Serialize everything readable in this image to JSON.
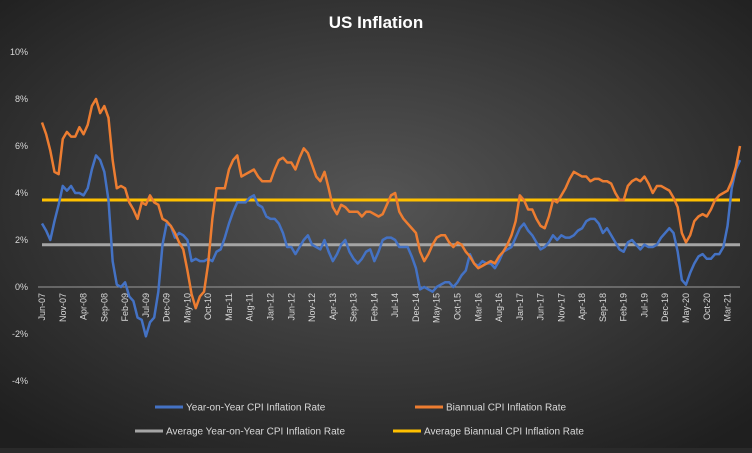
{
  "chart_data": {
    "type": "line",
    "title": "US Inflation",
    "categories": [
      "Jun-07",
      null,
      null,
      null,
      null,
      "Nov-07",
      null,
      null,
      null,
      null,
      "Apr-08",
      null,
      null,
      null,
      null,
      "Sep-08",
      null,
      null,
      null,
      null,
      "Feb-09",
      null,
      null,
      null,
      null,
      "Jul-09",
      null,
      null,
      null,
      null,
      "Dec-09",
      null,
      null,
      null,
      null,
      "May-10",
      null,
      null,
      null,
      null,
      "Oct-10",
      null,
      null,
      null,
      null,
      "Mar-11",
      null,
      null,
      null,
      null,
      "Aug-11",
      null,
      null,
      null,
      null,
      "Jan-12",
      null,
      null,
      null,
      null,
      "Jun-12",
      null,
      null,
      null,
      null,
      "Nov-12",
      null,
      null,
      null,
      null,
      "Apr-13",
      null,
      null,
      null,
      null,
      "Sep-13",
      null,
      null,
      null,
      null,
      "Feb-14",
      null,
      null,
      null,
      null,
      "Jul-14",
      null,
      null,
      null,
      null,
      "Dec-14",
      null,
      null,
      null,
      null,
      "May-15",
      null,
      null,
      null,
      null,
      "Oct-15",
      null,
      null,
      null,
      null,
      "Mar-16",
      null,
      null,
      null,
      null,
      "Aug-16",
      null,
      null,
      null,
      null,
      "Jan-17",
      null,
      null,
      null,
      null,
      "Jun-17",
      null,
      null,
      null,
      null,
      "Nov-17",
      null,
      null,
      null,
      null,
      "Apr-18",
      null,
      null,
      null,
      null,
      "Sep-18",
      null,
      null,
      null,
      null,
      "Feb-19",
      null,
      null,
      null,
      null,
      "Jul-19",
      null,
      null,
      null,
      null,
      "Dec-19",
      null,
      null,
      null,
      null,
      "May-20",
      null,
      null,
      null,
      null,
      "Oct-20",
      null,
      null,
      null,
      null,
      "Mar-21",
      null,
      null,
      null
    ],
    "series": [
      {
        "name": "Year-on-Year CPI Inflation Rate",
        "color": "#4472c4",
        "values": [
          2.7,
          2.4,
          2.0,
          2.8,
          3.5,
          4.3,
          4.1,
          4.3,
          4.0,
          4.0,
          3.9,
          4.2,
          5.0,
          5.6,
          5.4,
          4.9,
          3.7,
          1.1,
          0.1,
          0.0,
          0.2,
          -0.4,
          -0.6,
          -1.3,
          -1.4,
          -2.1,
          -1.5,
          -1.3,
          -0.2,
          1.8,
          2.7,
          2.6,
          2.1,
          2.3,
          2.2,
          2.0,
          1.1,
          1.2,
          1.1,
          1.1,
          1.2,
          1.1,
          1.5,
          1.6,
          2.1,
          2.7,
          3.2,
          3.6,
          3.6,
          3.6,
          3.8,
          3.9,
          3.5,
          3.4,
          3.0,
          2.9,
          2.9,
          2.7,
          2.3,
          1.7,
          1.7,
          1.4,
          1.7,
          2.0,
          2.2,
          1.8,
          1.7,
          1.6,
          2.0,
          1.5,
          1.1,
          1.4,
          1.8,
          2.0,
          1.5,
          1.2,
          1.0,
          1.2,
          1.5,
          1.6,
          1.1,
          1.5,
          2.0,
          2.1,
          2.1,
          2.0,
          1.7,
          1.7,
          1.7,
          1.3,
          0.8,
          -0.1,
          0.0,
          -0.1,
          -0.2,
          0.0,
          0.1,
          0.2,
          0.2,
          0.0,
          0.2,
          0.5,
          0.7,
          1.4,
          1.0,
          0.9,
          1.1,
          1.0,
          1.0,
          0.8,
          1.1,
          1.5,
          1.6,
          1.7,
          2.1,
          2.5,
          2.7,
          2.4,
          2.2,
          1.9,
          1.6,
          1.7,
          1.9,
          2.2,
          2.0,
          2.2,
          2.1,
          2.1,
          2.2,
          2.4,
          2.5,
          2.8,
          2.9,
          2.9,
          2.7,
          2.3,
          2.5,
          2.2,
          1.9,
          1.6,
          1.5,
          1.9,
          2.0,
          1.8,
          1.6,
          1.8,
          1.7,
          1.7,
          1.8,
          2.1,
          2.3,
          2.5,
          2.3,
          1.5,
          0.3,
          0.1,
          0.6,
          1.0,
          1.3,
          1.4,
          1.2,
          1.2,
          1.4,
          1.4,
          1.7,
          2.6,
          4.2,
          5.0,
          5.4
        ]
      },
      {
        "name": "Biannual CPI Inflation Rate",
        "color": "#ed7d31",
        "values": [
          7.0,
          6.5,
          5.8,
          4.9,
          4.8,
          6.3,
          6.6,
          6.4,
          6.4,
          6.8,
          6.5,
          6.9,
          7.7,
          8.0,
          7.4,
          7.7,
          7.2,
          5.4,
          4.2,
          4.3,
          4.2,
          3.6,
          3.3,
          2.9,
          3.6,
          3.5,
          3.9,
          3.6,
          3.5,
          2.9,
          2.8,
          2.6,
          2.3,
          1.9,
          1.6,
          0.7,
          -0.3,
          -0.9,
          -0.4,
          -0.2,
          1.0,
          2.9,
          4.2,
          4.2,
          4.2,
          5.0,
          5.4,
          5.6,
          4.7,
          4.8,
          4.9,
          5.0,
          4.7,
          4.5,
          4.5,
          4.5,
          5.0,
          5.4,
          5.5,
          5.3,
          5.3,
          5.0,
          5.5,
          5.9,
          5.7,
          5.2,
          4.7,
          4.5,
          4.9,
          4.2,
          3.4,
          3.1,
          3.5,
          3.4,
          3.2,
          3.2,
          3.2,
          3.0,
          3.2,
          3.2,
          3.1,
          3.0,
          3.1,
          3.5,
          3.9,
          4.0,
          3.2,
          2.9,
          2.7,
          2.5,
          2.3,
          1.5,
          1.1,
          1.4,
          1.8,
          2.1,
          2.2,
          2.2,
          1.9,
          1.7,
          1.9,
          1.8,
          1.5,
          1.3,
          1.0,
          0.8,
          0.9,
          1.0,
          1.1,
          1.0,
          1.3,
          1.5,
          1.8,
          2.2,
          2.8,
          3.9,
          3.7,
          3.3,
          3.3,
          2.9,
          2.6,
          2.5,
          3.0,
          3.7,
          3.6,
          3.9,
          4.2,
          4.6,
          4.9,
          4.8,
          4.7,
          4.7,
          4.5,
          4.6,
          4.6,
          4.5,
          4.5,
          4.4,
          4.0,
          3.7,
          3.7,
          4.3,
          4.5,
          4.6,
          4.5,
          4.7,
          4.4,
          4.0,
          4.3,
          4.3,
          4.2,
          4.1,
          3.8,
          3.4,
          2.3,
          1.9,
          2.2,
          2.8,
          3.0,
          3.1,
          3.0,
          3.3,
          3.7,
          3.9,
          4.0,
          4.1,
          4.5,
          5.1,
          6.0
        ]
      }
    ],
    "reference_lines": [
      {
        "name": "Average Year-on-Year CPI Inflation Rate",
        "color": "#a5a5a5",
        "value": 1.8
      },
      {
        "name": "Average Biannual CPI Inflation Rate",
        "color": "#ffc000",
        "value": 3.7
      }
    ],
    "ylim": [
      -4,
      10
    ],
    "yticks": [
      {
        "value": -4,
        "label": "-4%"
      },
      {
        "value": -2,
        "label": "-2%"
      },
      {
        "value": 0,
        "label": "0%"
      },
      {
        "value": 2,
        "label": "2%"
      },
      {
        "value": 4,
        "label": "4%"
      },
      {
        "value": 6,
        "label": "6%"
      },
      {
        "value": 8,
        "label": "8%"
      },
      {
        "value": 10,
        "label": "10%"
      }
    ],
    "grid": false,
    "legend": "bottom"
  }
}
